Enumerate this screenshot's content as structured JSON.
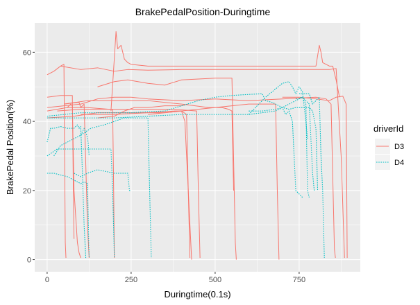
{
  "chart_data": {
    "type": "line",
    "title": "BrakePedalPosition-Duringtime",
    "xlabel": "Duringtime(0.1s)",
    "ylabel": "BrakePedal Position(%)",
    "xlim": [
      -37,
      932
    ],
    "ylim": [
      -3.5,
      68.5
    ],
    "x_ticks": [
      0,
      250,
      500,
      750
    ],
    "y_ticks": [
      0,
      20,
      40,
      60
    ],
    "grid": true,
    "legend": {
      "title": "driverId",
      "position": "right",
      "entries": [
        "D3",
        "D4"
      ]
    },
    "colors": {
      "D3": "#F8766D",
      "D4": "#00BFC4",
      "panel": "#EBEBEB",
      "grid": "#FFFFFF"
    },
    "series": [
      {
        "name": "D3",
        "style": "solid",
        "points": [
          [
            0,
            53.5
          ],
          [
            20,
            54.5
          ],
          [
            40,
            56
          ],
          [
            50,
            56.5
          ],
          [
            52,
            30
          ],
          [
            54,
            5
          ],
          [
            56,
            0.5
          ]
        ]
      },
      {
        "name": "D3",
        "style": "solid",
        "points": [
          [
            40,
            56
          ],
          [
            100,
            55
          ],
          [
            150,
            55.5
          ],
          [
            200,
            54.5
          ],
          [
            240,
            55
          ],
          [
            300,
            54.8
          ],
          [
            400,
            55
          ],
          [
            500,
            55
          ],
          [
            600,
            55
          ],
          [
            700,
            55
          ],
          [
            760,
            55
          ],
          [
            800,
            55
          ],
          [
            820,
            55
          ],
          [
            840,
            55
          ],
          [
            860,
            55.3
          ],
          [
            875,
            30
          ],
          [
            885,
            0.5
          ]
        ]
      },
      {
        "name": "D3",
        "style": "solid",
        "points": [
          [
            0,
            47
          ],
          [
            40,
            47.5
          ],
          [
            75,
            47.5
          ],
          [
            78,
            20
          ],
          [
            80,
            6
          ]
        ]
      },
      {
        "name": "D3",
        "style": "solid",
        "points": [
          [
            0,
            44
          ],
          [
            100,
            45
          ],
          [
            150,
            46.5
          ],
          [
            200,
            47
          ],
          [
            250,
            47
          ],
          [
            300,
            46.5
          ],
          [
            400,
            46
          ],
          [
            500,
            46.5
          ],
          [
            600,
            46
          ],
          [
            700,
            46.5
          ],
          [
            800,
            47
          ],
          [
            830,
            46.5
          ],
          [
            845,
            45
          ],
          [
            855,
            3
          ],
          [
            858,
            0.5
          ]
        ]
      },
      {
        "name": "D3",
        "style": "solid",
        "points": [
          [
            0,
            43
          ],
          [
            60,
            44
          ],
          [
            120,
            44
          ],
          [
            185,
            43.5
          ],
          [
            195,
            43.5
          ],
          [
            198,
            20
          ],
          [
            200,
            0.5
          ]
        ]
      },
      {
        "name": "D3",
        "style": "solid",
        "points": [
          [
            0,
            41
          ],
          [
            80,
            41.5
          ],
          [
            150,
            42.5
          ],
          [
            250,
            42.5
          ],
          [
            350,
            42.5
          ],
          [
            400,
            43
          ],
          [
            415,
            42
          ],
          [
            420,
            20
          ],
          [
            425,
            0.5
          ]
        ]
      },
      {
        "name": "D3",
        "style": "solid",
        "points": [
          [
            30,
            43
          ],
          [
            100,
            43.5
          ],
          [
            200,
            43.5
          ],
          [
            300,
            43.5
          ],
          [
            380,
            43.5
          ],
          [
            445,
            43
          ],
          [
            450,
            20
          ],
          [
            455,
            0.5
          ]
        ]
      },
      {
        "name": "D3",
        "style": "solid",
        "points": [
          [
            190,
            43
          ],
          [
            205,
            66
          ],
          [
            210,
            61
          ],
          [
            220,
            62
          ],
          [
            230,
            58
          ],
          [
            240,
            57
          ],
          [
            250,
            56.5
          ],
          [
            300,
            56
          ],
          [
            400,
            56
          ],
          [
            500,
            56
          ],
          [
            600,
            56
          ],
          [
            700,
            56
          ],
          [
            800,
            56
          ],
          [
            810,
            62
          ],
          [
            815,
            60
          ],
          [
            820,
            57
          ],
          [
            840,
            56
          ],
          [
            850,
            56
          ],
          [
            860,
            52
          ],
          [
            870,
            47
          ]
        ]
      },
      {
        "name": "D3",
        "style": "solid",
        "points": [
          [
            150,
            50
          ],
          [
            200,
            51.5
          ],
          [
            240,
            52
          ],
          [
            300,
            51
          ],
          [
            350,
            50.5
          ],
          [
            400,
            52
          ],
          [
            500,
            52.5
          ],
          [
            550,
            52.5
          ],
          [
            560,
            5
          ],
          [
            563,
            0
          ]
        ]
      },
      {
        "name": "D3",
        "style": "solid",
        "points": [
          [
            50,
            45
          ],
          [
            120,
            46
          ],
          [
            200,
            46
          ],
          [
            300,
            46
          ],
          [
            400,
            45
          ],
          [
            480,
            44
          ],
          [
            520,
            44
          ],
          [
            540,
            43.5
          ],
          [
            550,
            43
          ],
          [
            555,
            20
          ]
        ]
      },
      {
        "name": "D3",
        "style": "solid",
        "points": [
          [
            300,
            42
          ],
          [
            400,
            43
          ],
          [
            500,
            44
          ],
          [
            600,
            45
          ],
          [
            650,
            45
          ],
          [
            680,
            45
          ],
          [
            685,
            20
          ],
          [
            690,
            0
          ]
        ]
      },
      {
        "name": "D3",
        "style": "solid",
        "points": [
          [
            100,
            42
          ],
          [
            200,
            42
          ],
          [
            300,
            42.5
          ],
          [
            380,
            43
          ],
          [
            400,
            43
          ],
          [
            410,
            40
          ],
          [
            425,
            10
          ],
          [
            430,
            0
          ]
        ]
      },
      {
        "name": "D3",
        "style": "solid",
        "points": [
          [
            150,
            41
          ],
          [
            200,
            41.5
          ],
          [
            230,
            43
          ],
          [
            260,
            44
          ],
          [
            300,
            44
          ],
          [
            350,
            44.5
          ],
          [
            400,
            44.5
          ],
          [
            420,
            45
          ]
        ]
      },
      {
        "name": "D3",
        "style": "solid",
        "points": [
          [
            700,
            47
          ],
          [
            750,
            47
          ],
          [
            800,
            46.5
          ],
          [
            840,
            46
          ],
          [
            860,
            47
          ],
          [
            880,
            47.3
          ],
          [
            890,
            45
          ],
          [
            893,
            0.5
          ]
        ]
      },
      {
        "name": "D3",
        "style": "solid",
        "points": [
          [
            50,
            45
          ],
          [
            95,
            45.5
          ],
          [
            100,
            44
          ],
          [
            110,
            45
          ],
          [
            120,
            10
          ],
          [
            125,
            0.5
          ]
        ]
      },
      {
        "name": "D3",
        "style": "solid",
        "points": [
          [
            60,
            44
          ],
          [
            70,
            45
          ],
          [
            75,
            44.5
          ],
          [
            80,
            20
          ],
          [
            90,
            5
          ],
          [
            95,
            2
          ],
          [
            100,
            0.5
          ]
        ]
      },
      {
        "name": "D4",
        "style": "dotted",
        "points": [
          [
            0,
            25
          ],
          [
            20,
            25
          ],
          [
            40,
            24.5
          ],
          [
            60,
            24
          ],
          [
            80,
            23
          ],
          [
            100,
            22
          ],
          [
            110,
            22.5
          ],
          [
            120,
            22
          ],
          [
            125,
            0.5
          ]
        ]
      },
      {
        "name": "D4",
        "style": "dotted",
        "points": [
          [
            0,
            30
          ],
          [
            30,
            32
          ],
          [
            60,
            32
          ],
          [
            100,
            32
          ],
          [
            140,
            32
          ],
          [
            190,
            32
          ],
          [
            195,
            20
          ],
          [
            200,
            0.5
          ]
        ]
      },
      {
        "name": "D4",
        "style": "dotted",
        "points": [
          [
            0,
            41.5
          ],
          [
            50,
            42
          ],
          [
            100,
            42.5
          ],
          [
            150,
            42.5
          ],
          [
            200,
            42.5
          ],
          [
            250,
            42.5
          ],
          [
            300,
            42.8
          ],
          [
            350,
            43
          ],
          [
            400,
            44.5
          ],
          [
            450,
            46
          ],
          [
            500,
            47
          ],
          [
            550,
            47.5
          ],
          [
            600,
            47.8
          ],
          [
            640,
            48
          ],
          [
            650,
            46
          ],
          [
            670,
            45.5
          ],
          [
            700,
            44
          ],
          [
            740,
            46
          ],
          [
            760,
            47
          ],
          [
            770,
            45
          ],
          [
            775,
            20
          ],
          [
            780,
            18
          ]
        ]
      },
      {
        "name": "D4",
        "style": "dotted",
        "points": [
          [
            0,
            41
          ],
          [
            40,
            41
          ],
          [
            100,
            41
          ],
          [
            200,
            41
          ],
          [
            300,
            41.5
          ],
          [
            400,
            42
          ],
          [
            500,
            42
          ],
          [
            600,
            42
          ],
          [
            680,
            43
          ],
          [
            700,
            44
          ],
          [
            710,
            42
          ],
          [
            720,
            43
          ],
          [
            730,
            40
          ],
          [
            740,
            20
          ],
          [
            760,
            18
          ]
        ]
      },
      {
        "name": "D4",
        "style": "dotted",
        "points": [
          [
            600,
            42
          ],
          [
            650,
            47
          ],
          [
            700,
            51
          ],
          [
            720,
            51.5
          ],
          [
            730,
            50
          ],
          [
            740,
            48
          ],
          [
            750,
            50
          ],
          [
            760,
            48.5
          ],
          [
            770,
            40
          ],
          [
            775,
            35
          ]
        ]
      },
      {
        "name": "D4",
        "style": "dotted",
        "points": [
          [
            750,
            48
          ],
          [
            780,
            48
          ],
          [
            790,
            45
          ],
          [
            800,
            46
          ],
          [
            810,
            47
          ],
          [
            815,
            30
          ],
          [
            820,
            20
          ],
          [
            825,
            0.5
          ]
        ]
      },
      {
        "name": "D4",
        "style": "dotted",
        "points": [
          [
            0,
            34
          ],
          [
            10,
            38
          ],
          [
            20,
            38
          ],
          [
            40,
            38.5
          ],
          [
            60,
            38
          ],
          [
            80,
            38
          ],
          [
            90,
            39
          ],
          [
            95,
            38
          ],
          [
            100,
            38.5
          ],
          [
            105,
            25
          ],
          [
            110,
            10
          ],
          [
            115,
            0.5
          ]
        ]
      },
      {
        "name": "D4",
        "style": "dotted",
        "points": [
          [
            20,
            30
          ],
          [
            40,
            33
          ],
          [
            60,
            34
          ],
          [
            80,
            35
          ],
          [
            100,
            36
          ],
          [
            110,
            38
          ],
          [
            118,
            36
          ],
          [
            122,
            34
          ],
          [
            125,
            30
          ]
        ]
      },
      {
        "name": "D4",
        "style": "dotted",
        "points": [
          [
            80,
            25
          ],
          [
            100,
            24
          ],
          [
            120,
            25
          ],
          [
            150,
            26
          ],
          [
            200,
            25
          ],
          [
            230,
            25
          ],
          [
            240,
            25
          ],
          [
            245,
            20
          ],
          [
            250,
            20
          ]
        ]
      },
      {
        "name": "D4",
        "style": "dotted",
        "points": [
          [
            100,
            36
          ],
          [
            130,
            38
          ],
          [
            170,
            39
          ],
          [
            200,
            40
          ],
          [
            230,
            41
          ],
          [
            290,
            41
          ],
          [
            300,
            41
          ],
          [
            305,
            20
          ],
          [
            310,
            0.5
          ]
        ]
      },
      {
        "name": "D4",
        "style": "dotted",
        "points": [
          [
            600,
            43
          ],
          [
            640,
            43
          ],
          [
            680,
            43.5
          ],
          [
            700,
            44
          ],
          [
            720,
            43.5
          ],
          [
            740,
            44
          ],
          [
            780,
            44
          ],
          [
            790,
            43
          ],
          [
            800,
            38
          ],
          [
            805,
            20
          ]
        ]
      },
      {
        "name": "D4",
        "style": "dotted",
        "points": [
          [
            740,
            46.5
          ],
          [
            760,
            47
          ],
          [
            780,
            45
          ],
          [
            790,
            25
          ],
          [
            795,
            20
          ]
        ]
      }
    ]
  }
}
